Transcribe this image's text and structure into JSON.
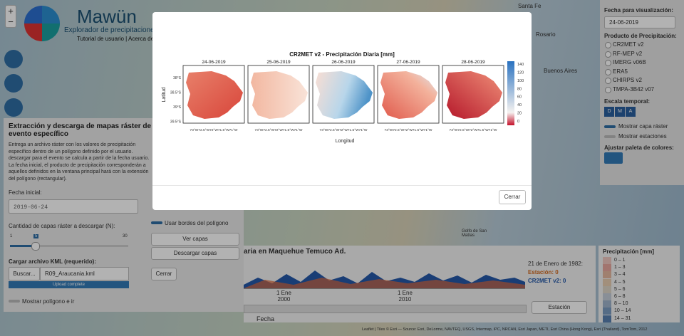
{
  "app": {
    "name": "Mawün",
    "subtitle": "Explorador de precipitaciones",
    "links": "Tutorial de usuario | Acerca de"
  },
  "map_labels": [
    "Santa Fe",
    "Rosario",
    "Buenos Aires",
    "Golfo de San Matías"
  ],
  "left_panel": {
    "title": "Extracción y descarga de mapas ráster de evento específico",
    "description": "Entrega un archivo ráster con los valores de precipitación específico dentro de un polígono definido por el usuario. descargar para el evento se calcula a partir de la fecha usuario. La fecha inicial, el producto de precipitación corresponderán a aquellos definidos en la ventana principal hará con la extensión del polígono (rectangular).",
    "start_label": "Fecha inicial:",
    "start_value": "2019-06-24",
    "layers_label": "Cantidad de capas ráster a descargar (N):",
    "slider_min": "1",
    "slider_value": "5",
    "slider_max": "30",
    "kml_label": "Cargar archivo KML (requerido):",
    "browse": "Buscar...",
    "file": "R09_Araucania.kml",
    "upload": "Upload complete",
    "show_polygon": "Mostrar polígono e ir",
    "use_borders": "Usar bordes del polígono",
    "view": "Ver capas",
    "download": "Descargar capas",
    "close": "Cerrar"
  },
  "right_panel": {
    "date_label": "Fecha para visualización:",
    "date_value": "24-06-2019",
    "product_label": "Producto de Precipitación:",
    "products": [
      "CR2MET v2",
      "RF-MEP v2",
      "IMERG v06B",
      "ERA5",
      "CHIRPS v2",
      "TMPA-3B42 v07"
    ],
    "scale_label": "Escala temporal:",
    "scales": [
      "D",
      "M",
      "A"
    ],
    "show_raster": "Mostrar capa ráster",
    "show_stations": "Mostrar estaciones",
    "palette_label": "Ajustar paleta de colores:"
  },
  "bottom_chart": {
    "title": "aria en Maquehue Temuco Ad.",
    "hover_date": "21 de Enero de 1982:",
    "hover_station": "Estación: 0",
    "hover_product": "CR2MET v2: 0",
    "xticks": [
      "1 Ene\n2000",
      "1 Ene\n2010"
    ],
    "xlabel": "Fecha",
    "station_button": "Estación"
  },
  "legend": {
    "title": "Precipitación [mm]",
    "bins": [
      "0 – 1",
      "1 – 3",
      "3 – 4",
      "4 – 5",
      "5 – 6",
      "6 – 8",
      "8 – 10",
      "10 – 14",
      "14 – 31"
    ]
  },
  "attribution": "Leaflet | Tiles © Esri — Source: Esri, DeLorme, NAVTEQ, USGS, Intermap, iPC, NRCAN, Esri Japan, METI, Esri China (Hong Kong), Esri (Thailand), TomTom, 2012",
  "modal": {
    "title": "CR2MET v2 - Precipitación Diaria [mm]",
    "dates": [
      "24-06-2019",
      "25-06-2019",
      "26-06-2019",
      "27-06-2019",
      "28-06-2019"
    ],
    "ylabel": "Latitud",
    "xlabel": "Longitud",
    "yticks": [
      "38°S",
      "38.5°S",
      "39°S",
      "39.5°S"
    ],
    "xticks": "73°W72.5°W72°W71.5°W71°W",
    "colorbar_ticks": [
      "140",
      "120",
      "100",
      "80",
      "60",
      "40",
      "20",
      "0"
    ],
    "close": "Cerrar"
  }
}
